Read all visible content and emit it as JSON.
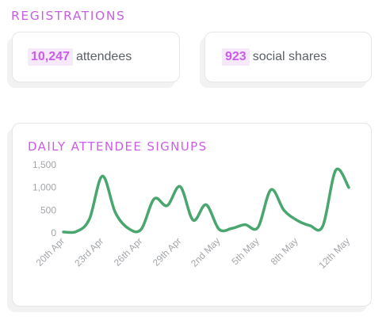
{
  "header": {
    "title": "REGISTRATIONS"
  },
  "stats": [
    {
      "value": "10,247",
      "label": "attendees"
    },
    {
      "value": "923",
      "label": "social shares"
    }
  ],
  "colors": {
    "accent": "#c95ee8",
    "line": "#48a66e",
    "highlight_bg": "#f6e9fb"
  },
  "chart_data": {
    "type": "line",
    "title": "DAILY ATTENDEE SIGNUPS",
    "xlabel": "",
    "ylabel": "",
    "ylim": [
      0,
      1500
    ],
    "y_ticks": [
      "1,500",
      "1,000",
      "500",
      "0"
    ],
    "y_tick_values": [
      1500,
      1000,
      500,
      0
    ],
    "x_ticks": [
      "20th Apr",
      "23rd Apr",
      "26th Apr",
      "29th Apr",
      "2nd May",
      "5th May",
      "8th May",
      "12th May"
    ],
    "grid": false,
    "series": [
      {
        "x": [
          "20 Apr",
          "21 Apr",
          "22 Apr",
          "23 Apr",
          "24 Apr",
          "25 Apr",
          "26 Apr",
          "27 Apr",
          "28 Apr",
          "29 Apr",
          "30 Apr",
          "1 May",
          "2 May",
          "3 May",
          "4 May",
          "5 May",
          "6 May",
          "7 May",
          "8 May",
          "9 May",
          "10 May",
          "11 May",
          "12 May"
        ],
        "values": [
          20,
          30,
          300,
          1250,
          450,
          100,
          80,
          750,
          600,
          1020,
          280,
          620,
          80,
          100,
          180,
          120,
          950,
          500,
          280,
          160,
          150,
          1380,
          1000
        ]
      }
    ]
  }
}
